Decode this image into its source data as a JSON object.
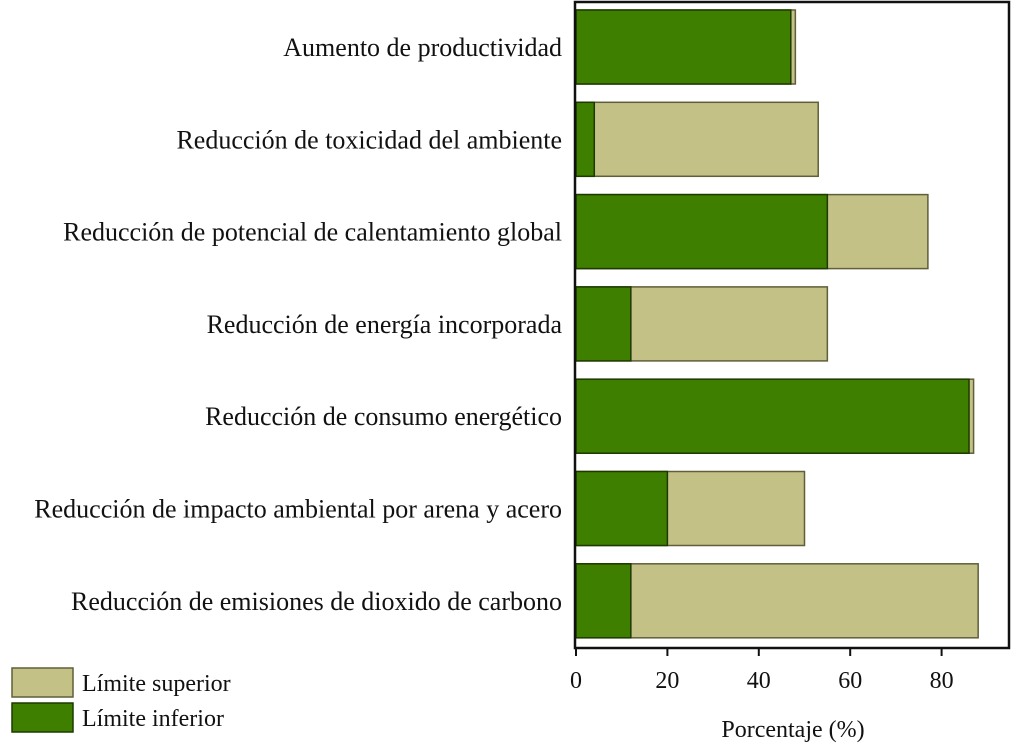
{
  "chart_data": {
    "type": "bar",
    "orientation": "horizontal",
    "stacked": false,
    "categories": [
      "Aumento de productividad",
      "Reducción de toxicidad del ambiente",
      "Reducción de potencial de calentamiento global",
      "Reducción de energía incorporada",
      "Reducción de consumo energético",
      "Reducción de impacto ambiental por arena y acero",
      "Reducción de emisiones de dioxido de carbono"
    ],
    "series": [
      {
        "name": "Límite superior",
        "values": [
          48,
          53,
          77,
          55,
          87,
          50,
          88
        ]
      },
      {
        "name": "Límite inferior",
        "values": [
          47,
          4,
          55,
          12,
          86,
          20,
          12
        ]
      }
    ],
    "colors": {
      "Límite superior": "#c4c187",
      "Límite inferior": "#3f7f00"
    },
    "xlabel": "Porcentaje (%)",
    "ylabel": "",
    "title": "",
    "xlim": [
      0,
      95
    ],
    "xticks": [
      0,
      20,
      40,
      60,
      80
    ],
    "grid": false,
    "legend": "bottom-left"
  }
}
